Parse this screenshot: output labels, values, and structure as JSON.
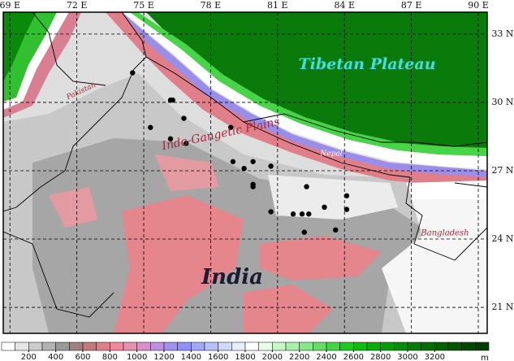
{
  "map": {
    "extent": {
      "lon": [
        68.7,
        90.4
      ],
      "lat": [
        19.86,
        33.96
      ]
    },
    "lon_ticks": [
      {
        "value": 69,
        "label": "69 E"
      },
      {
        "value": 72,
        "label": "72 E"
      },
      {
        "value": 75,
        "label": "75 E"
      },
      {
        "value": 78,
        "label": "78 E"
      },
      {
        "value": 81,
        "label": "81 E"
      },
      {
        "value": 84,
        "label": "84 E"
      },
      {
        "value": 87,
        "label": "87 E"
      },
      {
        "value": 90,
        "label": "90 E"
      }
    ],
    "lat_ticks": [
      {
        "value": 33,
        "label": "33 N"
      },
      {
        "value": 30,
        "label": "30 N"
      },
      {
        "value": 27,
        "label": "27 N"
      },
      {
        "value": 24,
        "label": "24 N"
      },
      {
        "value": 21,
        "label": "21 N"
      }
    ],
    "region_labels": {
      "tibet": "Tibetan Plateau",
      "pakistan": "Pakistan",
      "igp": "Indo-Gangetic Plains",
      "nepal": "Nepal",
      "bangladesh": "Bangladesh",
      "india": "India"
    },
    "stations": {
      "lon": [
        74.5,
        76.2,
        76.3,
        76.8,
        75.3,
        76.2,
        76.9,
        78.9,
        79.0,
        79.5,
        79.9,
        80.7,
        79.9,
        79.9,
        82.3,
        84.1,
        80.7,
        81.7,
        82.1,
        82.4,
        83.1,
        84.1,
        82.2,
        83.6
      ],
      "lat": [
        31.3,
        30.1,
        30.1,
        29.3,
        28.9,
        28.4,
        28.2,
        28.9,
        27.4,
        27.1,
        27.4,
        27.2,
        26.4,
        26.3,
        26.3,
        25.9,
        25.2,
        25.1,
        25.1,
        25.1,
        25.4,
        25.3,
        24.3,
        24.4
      ]
    },
    "colorbar": {
      "lim": [
        0,
        3600
      ],
      "ticks": [
        200,
        400,
        600,
        800,
        1000,
        1200,
        1400,
        1600,
        1800,
        2000,
        2200,
        2400,
        2600,
        2800,
        3000,
        3200
      ],
      "unit": "m"
    }
  }
}
